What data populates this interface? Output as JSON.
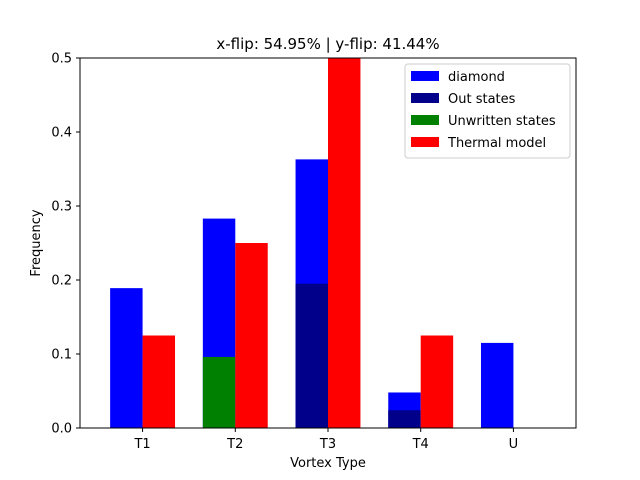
{
  "chart_data": {
    "type": "bar",
    "title": "x-flip:  54.95%  |  y-flip:  41.44%",
    "xlabel": "Vortex Type",
    "ylabel": "Frequency",
    "categories": [
      "T1",
      "T2",
      "T3",
      "T4",
      "U"
    ],
    "ylim": [
      0,
      0.5
    ],
    "yticks": [
      "0.0",
      "0.1",
      "0.2",
      "0.3",
      "0.4",
      "0.5"
    ],
    "grid": false,
    "legend_position": "top-right",
    "series": [
      {
        "name": "diamond",
        "color": "#0000ff",
        "offset": "left",
        "values": [
          0.189,
          0.283,
          0.363,
          0.048,
          0.115
        ]
      },
      {
        "name": "Out states",
        "color": "#00008b",
        "offset": "left",
        "values": [
          0,
          0,
          0.195,
          0.024,
          0
        ]
      },
      {
        "name": "Unwritten states",
        "color": "#008000",
        "offset": "left",
        "values": [
          0,
          0.096,
          0,
          0,
          0
        ]
      },
      {
        "name": "Thermal model",
        "color": "#ff0000",
        "offset": "right",
        "values": [
          0.125,
          0.25,
          0.5,
          0.125,
          0
        ]
      }
    ]
  }
}
